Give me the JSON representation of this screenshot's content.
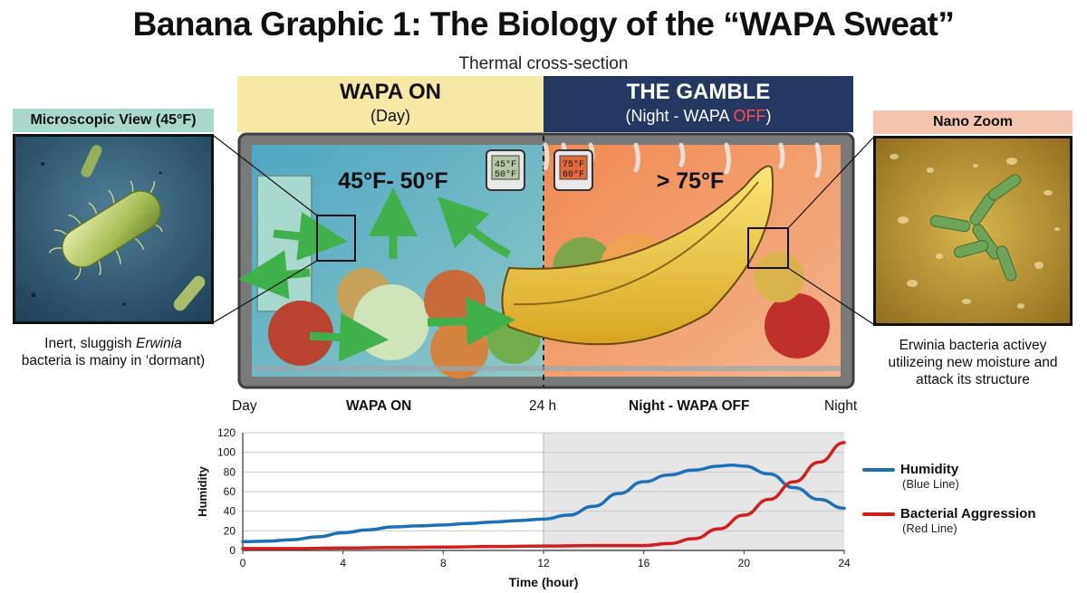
{
  "title": "Banana Graphic 1: The Biology of the “WAPA Sweat”",
  "subtitle": "Thermal cross-section",
  "header_on": {
    "title": "WAPA ON",
    "sub": "(Day)"
  },
  "header_gamble": {
    "title": "THE GAMBLE",
    "sub_pre": "(Night - WAPA ",
    "sub_off": "OFF",
    "sub_post": ")"
  },
  "micro": {
    "title": "Microscopic View (45°F)",
    "caption_1": "Inert, sluggish ",
    "caption_italic": "Erwinia",
    "caption_2": "bacteria is mainy in ‘dormant)"
  },
  "nano": {
    "title": "Nano Zoom",
    "caption": "Erwinia bacteria activey utilizeing new moisture and attack its structure"
  },
  "fridge": {
    "cool_temp": "45°F- 50°F",
    "warm_temp": "> 75°F",
    "cool_thermo_1": "45°F",
    "cool_thermo_2": "50°F",
    "warm_thermo_1": "75°F",
    "warm_thermo_2": "60°F"
  },
  "timeline": {
    "day": "Day",
    "on": "WAPA ON",
    "mid": "24 h",
    "off": "Night - WAPA OFF",
    "night": "Night"
  },
  "colors": {
    "humidity": "#1f6fb4",
    "bacteria": "#d11f1f",
    "shade": "#e6e6e6",
    "cool": "#6fb0c9",
    "warm": "#ea8a52"
  },
  "chart_data": {
    "type": "line",
    "xlabel": "Time (hour)",
    "ylabel": "Humidity",
    "xlim": [
      0,
      24
    ],
    "ylim": [
      0,
      120
    ],
    "xticks": [
      0,
      4,
      8,
      12,
      16,
      20,
      24
    ],
    "yticks": [
      0,
      20,
      40,
      60,
      80,
      100,
      120
    ],
    "shaded_range": [
      12,
      24
    ],
    "grid": true,
    "legend_position": "right",
    "series": [
      {
        "name": "Humidity",
        "sub": "(Blue Line)",
        "color": "#1f6fb4",
        "x": [
          0,
          1,
          2,
          3,
          4,
          5,
          6,
          7,
          8,
          9,
          10,
          11,
          12,
          13,
          14,
          15,
          16,
          17,
          18,
          19,
          19.5,
          20,
          21,
          22,
          23,
          24
        ],
        "y": [
          9,
          9.5,
          11,
          14,
          18,
          21,
          24,
          25,
          26,
          27.5,
          29,
          30.5,
          32,
          36,
          45,
          58,
          70,
          77,
          82,
          86,
          87,
          86,
          78,
          64,
          52,
          43
        ]
      },
      {
        "name": "Bacterial Aggression",
        "sub": "(Red Line)",
        "color": "#d11f1f",
        "x": [
          0,
          2,
          4,
          6,
          8,
          10,
          12,
          14,
          15,
          16,
          17,
          18,
          19,
          20,
          21,
          22,
          23,
          24
        ],
        "y": [
          2,
          2,
          2.5,
          3,
          3.5,
          4,
          4.5,
          5,
          5,
          5,
          7,
          12,
          22,
          36,
          52,
          70,
          90,
          110
        ]
      }
    ]
  }
}
